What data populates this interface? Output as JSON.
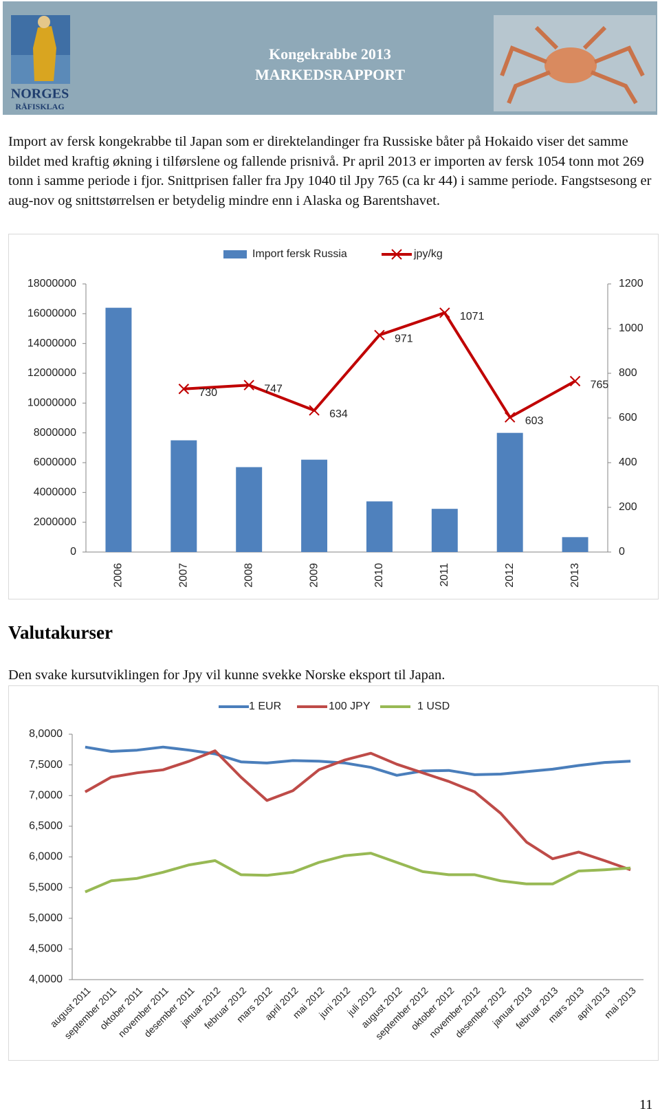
{
  "header": {
    "logo_text": [
      "NORGES",
      "RÅFISKLAG"
    ],
    "title": "Kongekrabbe 2013",
    "subtitle": "MARKEDSRAPPORT"
  },
  "paragraph_1": "Import av fersk kongekrabbe til Japan som er direktelandinger fra Russiske båter på Hokaido viser det samme bildet med kraftig økning i tilførslene og fallende prisnivå. Pr april 2013 er importen av fersk 1054 tonn mot 269 tonn i samme periode i fjor. Snittprisen faller fra Jpy 1040 til Jpy 765 (ca kr 44) i samme periode. Fangstsesong er aug-nov og snittstørrelsen er betydelig mindre enn i Alaska og Barentshavet.",
  "section_heading": "Valutakurser",
  "paragraph_2": "Den svake kursutviklingen for Jpy vil kunne svekke Norske eksport til Japan.",
  "page_number": "11",
  "chart_data": [
    {
      "type": "bar",
      "categories": [
        "2006",
        "2007",
        "2008",
        "2009",
        "2010",
        "2011",
        "2012",
        "2013"
      ],
      "series": [
        {
          "name": "Import fersk Russia",
          "color": "#4f81bd",
          "values": [
            16400000,
            7500000,
            5700000,
            6200000,
            3400000,
            2900000,
            8000000,
            1000000
          ]
        },
        {
          "name": "jpy/kg",
          "type": "line",
          "axis": "y2",
          "marker": "x",
          "data_labels": true,
          "color": "#c00000",
          "values": [
            null,
            730,
            747,
            634,
            971,
            1071,
            603,
            765
          ]
        }
      ],
      "ylim": [
        0,
        18000000
      ],
      "yticks": [
        0,
        2000000,
        4000000,
        6000000,
        8000000,
        10000000,
        12000000,
        14000000,
        16000000,
        18000000
      ],
      "y2lim": [
        0,
        1200
      ],
      "y2ticks": [
        0,
        200,
        400,
        600,
        800,
        1000,
        1200
      ],
      "x_label_rotation": -90,
      "legend": "top",
      "grid": false
    },
    {
      "type": "line",
      "categories": [
        "august 2011",
        "september 2011",
        "oktober 2011",
        "november 2011",
        "desember 2011",
        "januar 2012",
        "februar 2012",
        "mars 2012",
        "april 2012",
        "mai 2012",
        "juni 2012",
        "juli 2012",
        "august 2012",
        "september 2012",
        "oktober 2012",
        "november 2012",
        "desember 2012",
        "januar 2013",
        "februar 2013",
        "mars 2013",
        "april 2013",
        "mai 2013"
      ],
      "series": [
        {
          "name": "1 EUR",
          "color": "#4a7ebb",
          "values": [
            7.79,
            7.72,
            7.74,
            7.79,
            7.74,
            7.68,
            7.55,
            7.53,
            7.57,
            7.56,
            7.53,
            7.46,
            7.33,
            7.4,
            7.41,
            7.34,
            7.35,
            7.39,
            7.43,
            7.49,
            7.54,
            7.56
          ]
        },
        {
          "name": "100 JPY",
          "color": "#be4b48",
          "values": [
            7.06,
            7.3,
            7.37,
            7.42,
            7.56,
            7.73,
            7.3,
            6.92,
            7.08,
            7.42,
            7.58,
            7.69,
            7.51,
            7.37,
            7.23,
            7.06,
            6.71,
            6.24,
            5.97,
            6.08,
            5.94,
            5.79
          ]
        },
        {
          "name": "1 USD",
          "color": "#98b954",
          "values": [
            5.43,
            5.61,
            5.65,
            5.75,
            5.87,
            5.94,
            5.71,
            5.7,
            5.75,
            5.91,
            6.02,
            6.06,
            5.91,
            5.76,
            5.71,
            5.71,
            5.61,
            5.56,
            5.56,
            5.77,
            5.79,
            5.82
          ]
        }
      ],
      "ylim": [
        4,
        8
      ],
      "yticks": [
        {
          "value": 4,
          "label": "4,0000"
        },
        {
          "value": 4.5,
          "label": "4,5000"
        },
        {
          "value": 5,
          "label": "5,0000"
        },
        {
          "value": 5.5,
          "label": "5,5000"
        },
        {
          "value": 6,
          "label": "6,0000"
        },
        {
          "value": 6.5,
          "label": "6,5000"
        },
        {
          "value": 7,
          "label": "7,0000"
        },
        {
          "value": 7.5,
          "label": "7,5000"
        },
        {
          "value": 8,
          "label": "8,0000"
        }
      ],
      "x_label_rotation": -45,
      "legend": "top",
      "grid": false
    }
  ]
}
